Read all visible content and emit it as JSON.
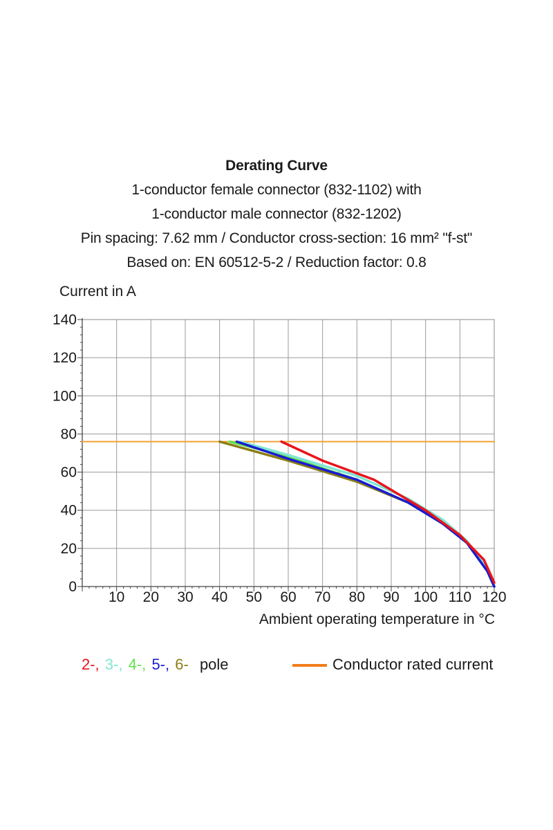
{
  "titles": {
    "main": "Derating Curve",
    "line1": "1-conductor female connector (832-1102) with",
    "line2": "1-conductor male connector (832-1202)",
    "line3": "Pin spacing: 7.62 mm / Conductor cross-section: 16 mm² \"f-st\"",
    "line4": "Based on: EN 60512-5-2 / Reduction factor: 0.8"
  },
  "legend": {
    "poles": [
      {
        "label": "2-,",
        "color": "#e8151b"
      },
      {
        "label": "3-,",
        "color": "#7fe6d4"
      },
      {
        "label": "4-,",
        "color": "#5fe14a"
      },
      {
        "label": "5-,",
        "color": "#1a1ad4"
      },
      {
        "label": "6-",
        "color": "#8b7d14"
      }
    ],
    "poles_suffix": "pole",
    "rated_label": "Conductor rated current",
    "rated_color": "#f07d1a"
  },
  "chart_data": {
    "type": "line",
    "ylabel": "Current in A",
    "xlabel": "Ambient operating temperature in °C",
    "xlim": [
      0,
      120
    ],
    "ylim": [
      0,
      140
    ],
    "x_ticks": [
      10,
      20,
      30,
      40,
      50,
      60,
      70,
      80,
      90,
      100,
      110,
      120
    ],
    "y_ticks": [
      0,
      20,
      40,
      60,
      80,
      100,
      120,
      140
    ],
    "grid": true,
    "series": [
      {
        "name": "Conductor rated current",
        "color": "#f0a030",
        "x": [
          0,
          120
        ],
        "y": [
          76,
          76
        ]
      },
      {
        "name": "6-",
        "color": "#8b7d14",
        "x": [
          40,
          60,
          80,
          95,
          105,
          112,
          118,
          120
        ],
        "y": [
          76,
          66,
          55,
          44,
          33,
          23,
          8,
          0
        ]
      },
      {
        "name": "4-",
        "color": "#5fe14a",
        "x": [
          43,
          60,
          80,
          95,
          105,
          112,
          118,
          120
        ],
        "y": [
          76,
          68,
          56,
          44,
          33,
          23,
          8,
          0
        ]
      },
      {
        "name": "3-",
        "color": "#7fe6d4",
        "x": [
          46,
          60,
          80,
          95,
          105,
          112,
          118,
          120
        ],
        "y": [
          76,
          69,
          58,
          46,
          35,
          24,
          9,
          0
        ]
      },
      {
        "name": "5-",
        "color": "#1a1ad4",
        "x": [
          45,
          60,
          80,
          95,
          105,
          112,
          118,
          120
        ],
        "y": [
          76,
          67,
          56,
          44,
          33,
          23,
          8,
          0
        ]
      },
      {
        "name": "2-",
        "color": "#e8151b",
        "x": [
          58,
          70,
          85,
          100,
          110,
          117,
          120
        ],
        "y": [
          76,
          66,
          56,
          40,
          27,
          14,
          2
        ]
      }
    ]
  }
}
